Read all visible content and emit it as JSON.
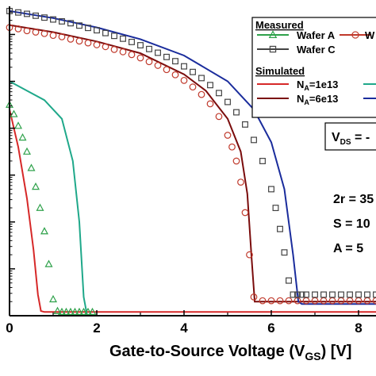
{
  "chart_data": {
    "type": "line",
    "title": "",
    "xlabel": "Gate-to-Source Voltage (V",
    "xlabel_sub": "GS",
    "xlabel_end": ") [V]",
    "ylabel": "",
    "xlim": [
      0,
      8.4
    ],
    "x_ticks": [
      0,
      2,
      4,
      6,
      8
    ],
    "y_scale": "log",
    "ylim_decades": [
      0,
      6.6
    ],
    "grid": false,
    "legend_position": "top-right",
    "legend": {
      "measured_header": "Measured",
      "simulated_header": "Simulated",
      "entries": [
        {
          "label": "Wafer A",
          "color": "#2ea14a",
          "marker": "triangle"
        },
        {
          "label": "W",
          "color": "#c0392b",
          "marker": "circle"
        },
        {
          "label": "Wafer C",
          "color": "#444444",
          "marker": "square"
        },
        {
          "label_main": "N",
          "label_sub": "A",
          "label_rest": "=1e13",
          "color": "#d62828",
          "marker": "none"
        },
        {
          "label": "",
          "color": "#1fa88a",
          "marker": "none"
        },
        {
          "label_main": "N",
          "label_sub": "A",
          "label_rest": "=6e13",
          "color": "#7a0c0c",
          "marker": "none"
        },
        {
          "label": "",
          "color": "#1a2c9c",
          "marker": "none"
        }
      ]
    },
    "annotations": {
      "vds_main": "V",
      "vds_sub": "DS",
      "vds_rest": " = -",
      "line1": "2r = 35",
      "line2": "S = 10",
      "line3": "A = 5"
    },
    "series": [
      {
        "name": "",
        "color": "#d62828",
        "marker": "none",
        "x": [
          0,
          0.2,
          0.4,
          0.55,
          0.65,
          0.72,
          0.8,
          1.0,
          2.0,
          4.0,
          6.0,
          8.4
        ],
        "y": [
          4.4,
          3.6,
          2.5,
          1.4,
          0.45,
          0.1,
          0.08,
          0.08,
          0.08,
          0.08,
          0.08,
          0.08
        ]
      },
      {
        "name": "",
        "color": "#1fa88a",
        "marker": "none",
        "x": [
          0,
          0.4,
          0.8,
          1.2,
          1.45,
          1.6,
          1.7,
          1.78,
          2.0,
          4.0,
          6.0,
          8.4
        ],
        "y": [
          5.0,
          4.8,
          4.6,
          4.2,
          3.3,
          2.0,
          0.4,
          0.0,
          0.0,
          0.0,
          0.0,
          0.0
        ]
      },
      {
        "name": "",
        "color": "#7a0c0c",
        "marker": "none",
        "x": [
          0,
          1,
          2,
          3,
          4,
          4.5,
          5.0,
          5.3,
          5.45,
          5.55,
          5.62,
          5.7,
          6.0,
          7.0,
          8.4
        ],
        "y": [
          6.2,
          6.05,
          5.85,
          5.6,
          5.15,
          4.8,
          4.2,
          3.5,
          2.6,
          1.2,
          0.3,
          0.3,
          0.3,
          0.3,
          0.3
        ]
      },
      {
        "name": "",
        "color": "#1a2c9c",
        "marker": "none",
        "x": [
          0,
          1,
          2,
          3,
          4,
          5,
          5.6,
          6.0,
          6.3,
          6.5,
          6.62,
          6.7,
          7.0,
          8.4
        ],
        "y": [
          6.5,
          6.35,
          6.15,
          5.9,
          5.55,
          5.0,
          4.4,
          3.7,
          2.7,
          1.3,
          0.3,
          0.25,
          0.25,
          0.25
        ]
      },
      {
        "name": "Wafer A",
        "color": "#2ea14a",
        "marker": "triangle",
        "x": [
          0,
          0.1,
          0.2,
          0.3,
          0.4,
          0.5,
          0.6,
          0.7,
          0.8,
          0.9,
          1.0,
          1.1,
          1.2,
          1.3,
          1.4,
          1.5,
          1.6,
          1.7,
          1.8,
          1.9
        ],
        "y": [
          4.5,
          4.3,
          4.05,
          3.8,
          3.5,
          3.15,
          2.75,
          2.3,
          1.8,
          1.1,
          0.35,
          0.1,
          0.08,
          0.08,
          0.08,
          0.08,
          0.08,
          0.08,
          0.08,
          0.08
        ]
      },
      {
        "name": "W",
        "color": "#c0392b",
        "marker": "circle",
        "x": [
          0,
          0.2,
          0.4,
          0.6,
          0.8,
          1.0,
          1.2,
          1.4,
          1.6,
          1.8,
          2.0,
          2.2,
          2.4,
          2.6,
          2.8,
          3.0,
          3.2,
          3.4,
          3.6,
          3.8,
          4.0,
          4.2,
          4.4,
          4.6,
          4.8,
          5.0,
          5.1,
          5.2,
          5.3,
          5.4,
          5.5,
          5.6,
          5.8,
          6.0,
          6.2,
          6.4,
          6.6,
          6.8,
          7.0,
          7.2,
          7.4,
          7.6,
          7.8,
          8.0,
          8.2,
          8.4
        ],
        "y": [
          6.15,
          6.12,
          6.08,
          6.05,
          6.02,
          5.98,
          5.95,
          5.9,
          5.86,
          5.82,
          5.78,
          5.74,
          5.68,
          5.63,
          5.57,
          5.5,
          5.42,
          5.34,
          5.25,
          5.14,
          5.02,
          4.88,
          4.72,
          4.52,
          4.25,
          3.85,
          3.6,
          3.3,
          2.85,
          2.2,
          1.3,
          0.4,
          0.32,
          0.32,
          0.32,
          0.32,
          0.32,
          0.32,
          0.32,
          0.32,
          0.32,
          0.32,
          0.32,
          0.32,
          0.32,
          0.32
        ]
      },
      {
        "name": "Wafer C",
        "color": "#444444",
        "marker": "square",
        "x": [
          0,
          0.2,
          0.4,
          0.6,
          0.8,
          1.0,
          1.2,
          1.4,
          1.6,
          1.8,
          2.0,
          2.2,
          2.4,
          2.6,
          2.8,
          3.0,
          3.2,
          3.4,
          3.6,
          3.8,
          4.0,
          4.2,
          4.4,
          4.6,
          4.8,
          5.0,
          5.2,
          5.4,
          5.6,
          5.8,
          6.0,
          6.1,
          6.2,
          6.3,
          6.4,
          6.5,
          6.6,
          6.7,
          6.8,
          7.0,
          7.2,
          7.4,
          7.6,
          7.8,
          8.0,
          8.2,
          8.4
        ],
        "y": [
          6.5,
          6.47,
          6.44,
          6.4,
          6.36,
          6.32,
          6.28,
          6.24,
          6.19,
          6.14,
          6.09,
          6.03,
          5.97,
          5.91,
          5.84,
          5.77,
          5.69,
          5.61,
          5.52,
          5.43,
          5.32,
          5.2,
          5.07,
          4.92,
          4.75,
          4.56,
          4.34,
          4.08,
          3.75,
          3.3,
          2.7,
          2.3,
          1.85,
          1.35,
          0.75,
          0.45,
          0.45,
          0.45,
          0.45,
          0.45,
          0.45,
          0.45,
          0.45,
          0.45,
          0.45,
          0.45,
          0.45
        ]
      }
    ]
  }
}
